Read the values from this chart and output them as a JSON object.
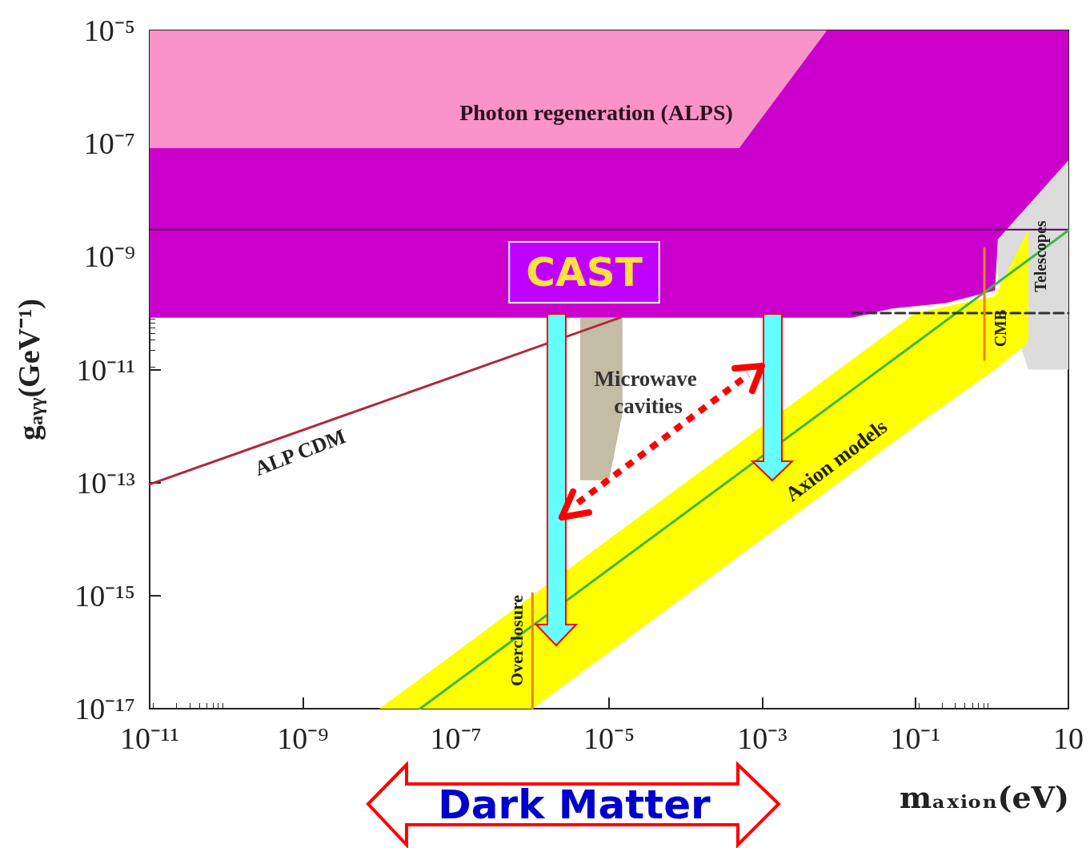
{
  "chart_data": {
    "type": "line",
    "xlabel": "mₐₓᵢₒₙ(eV)",
    "ylabel": "g$_{aγγ}$(GeV⁻¹)",
    "log": "xy",
    "grid": false,
    "xlim": [
      1e-11,
      10
    ],
    "ylim": [
      1e-17,
      1e-05
    ],
    "xticks": [
      {
        "value": 1e-11,
        "label": "10⁻¹¹"
      },
      {
        "value": 1e-09,
        "label": "10⁻⁹"
      },
      {
        "value": 1e-07,
        "label": "10⁻⁷"
      },
      {
        "value": 1e-05,
        "label": "10⁻⁵"
      },
      {
        "value": 0.001,
        "label": "10⁻³"
      },
      {
        "value": 0.1,
        "label": "10⁻¹"
      },
      10
    ],
    "yticks": [
      {
        "value": 1e-17,
        "label": "10⁻¹⁷"
      },
      {
        "value": 1e-15,
        "label": "10⁻¹⁵"
      },
      {
        "value": 1e-13,
        "label": "10⁻¹³"
      },
      {
        "value": 1e-11,
        "label": "10⁻¹¹"
      },
      {
        "value": 1e-09,
        "label": "10⁻⁹"
      },
      {
        "value": 1e-07,
        "label": "10⁻⁷"
      },
      {
        "value": 1e-05,
        "label": "10⁻⁵"
      }
    ],
    "series": [
      {
        "color": "#f993c9",
        "x": [
          1e-11,
          0.0005,
          0.007
        ],
        "values": [
          null,
          null,
          null
        ],
        "upper": [
          1e-05,
          1e-05,
          1e-05
        ],
        "lower": [
          8.3e-08,
          8.3e-08,
          1e-05
        ]
      },
      {
        "color": "#cc00cc",
        "x": [
          1e-11,
          0.0005,
          0.007,
          0.015,
          0.05,
          0.25,
          1.1,
          1.2,
          10
        ],
        "values": [
          null,
          null,
          null,
          null,
          null,
          null,
          null,
          null,
          null
        ],
        "upper": [
          8.3e-08,
          8.3e-08,
          1e-05,
          1e-05,
          1e-05,
          1e-05,
          1e-05,
          1e-05,
          1e-05
        ],
        "lower": [
          8.3e-11,
          8.3e-11,
          8.3e-11,
          8.3e-11,
          1.2e-10,
          1.5e-10,
          2.5e-10,
          2e-09,
          5e-08
        ]
      },
      {
        "color": "#c4bca4",
        "x": [
          4.2e-06,
          1e-05,
          1.5e-05
        ],
        "values": [
          null,
          null,
          null
        ],
        "upper": [
          8.3e-11,
          8.3e-11,
          8.3e-11
        ],
        "lower": [
          1.1e-13,
          1.1e-13,
          1.7e-12
        ]
      },
      {
        "color": "#dcdcdc",
        "x": [
          1.2,
          3,
          10
        ],
        "values": [
          null,
          null,
          null
        ],
        "upper": [
          2e-09,
          8e-09,
          5e-08
        ],
        "lower": [
          4e-10,
          1e-11,
          1e-11
        ]
      },
      {
        "color": "#ffff00",
        "x": [
          1e-08,
          1e-06,
          0.1,
          1.1,
          3
        ],
        "values": [
          null,
          null,
          null,
          null,
          null
        ],
        "upper": [
          1e-17,
          1e-15,
          1e-10,
          2e-10,
          3e-09
        ],
        "lower": [
          1e-17,
          1e-17,
          1e-12,
          1e-11,
          3e-11
        ]
      },
      {
        "color": "#3cb83c",
        "x": [
          3.4e-08,
          10
        ],
        "values": [
          1e-17,
          2.9e-09
        ]
      },
      {
        "color": "#b02838",
        "x": [
          1e-11,
          1.4e-05
        ],
        "values": [
          9.3e-14,
          8.3e-11
        ]
      },
      {
        "color": "#333333",
        "line_style": "dashed",
        "x": [
          0.015,
          10
        ],
        "values": [
          1e-10,
          1e-10
        ]
      },
      {
        "color": "#f08020",
        "x": [
          0.8,
          0.8
        ],
        "values": [
          1.4e-09,
          1.5e-11
        ]
      },
      {
        "color": "#f08020",
        "x": [
          1e-06,
          1e-06
        ],
        "values": [
          1.1e-15,
          1e-17
        ]
      }
    ],
    "ref_lines": [
      {
        "axis": "y",
        "value": 3e-09,
        "color": "#550055"
      }
    ],
    "annotations": [
      "Photon regeneration (ALPS)",
      "CAST",
      "Microwave cavities",
      "ALP CDM",
      "Axion models",
      "Overclosure",
      "CMB",
      "Telescopes",
      "Dark Matter"
    ]
  }
}
